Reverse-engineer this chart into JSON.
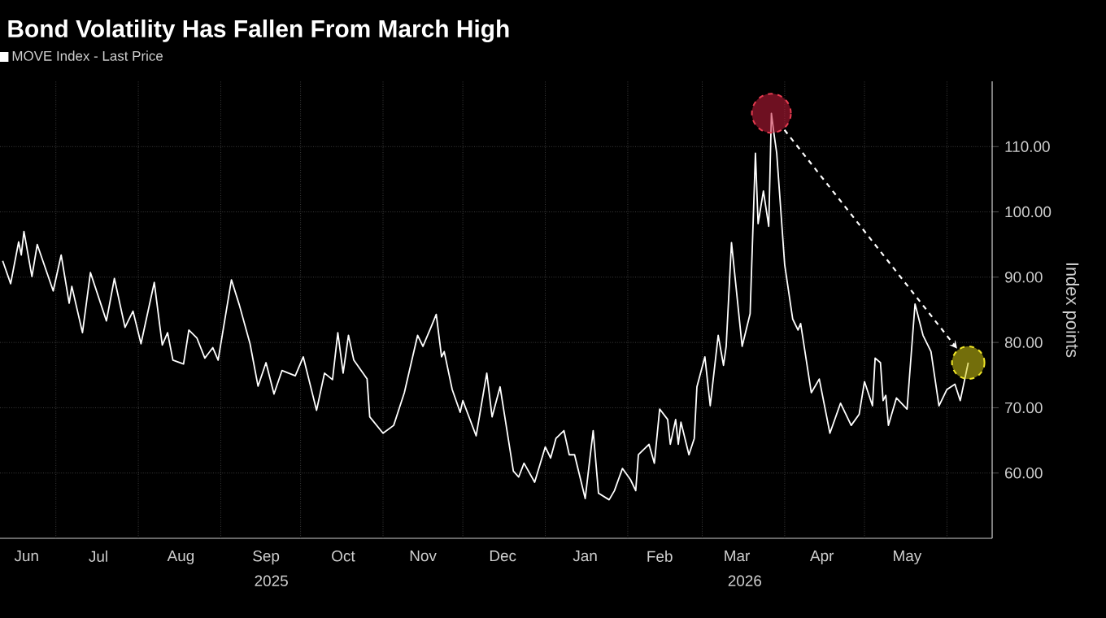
{
  "chart_data": {
    "type": "line",
    "title": "Bond Volatility Has Fallen From March High",
    "ylabel": "Index points",
    "legend": "top left",
    "grid": true,
    "marker": "none",
    "line_style": "solid",
    "xlim": [
      "2025-06-10",
      "2026-06-18"
    ],
    "ylim": [
      50,
      120
    ],
    "yticks": [
      {
        "value": 60,
        "label": "60.00"
      },
      {
        "value": 70,
        "label": "70.00"
      },
      {
        "value": 80,
        "label": "80.00"
      },
      {
        "value": 90,
        "label": "90.00"
      },
      {
        "value": 100,
        "label": "100.00"
      },
      {
        "value": 110,
        "label": "110.00"
      }
    ],
    "xticks": [
      {
        "value": "2025-06-20",
        "label": "Jun"
      },
      {
        "value": "2025-07-17",
        "label": "Jul"
      },
      {
        "value": "2025-08-17",
        "label": "Aug"
      },
      {
        "value": "2025-09-18",
        "label": "Sep"
      },
      {
        "value": "2025-10-17",
        "label": "Oct"
      },
      {
        "value": "2025-11-16",
        "label": "Nov"
      },
      {
        "value": "2025-12-16",
        "label": "Dec"
      },
      {
        "value": "2026-01-16",
        "label": "Jan"
      },
      {
        "value": "2026-02-13",
        "label": "Feb"
      },
      {
        "value": "2026-03-14",
        "label": "Mar"
      },
      {
        "value": "2026-04-15",
        "label": "Apr"
      },
      {
        "value": "2026-05-17",
        "label": "May"
      },
      {
        "value": "2025-07-01",
        "label": null
      },
      {
        "value": "2025-08-01",
        "label": null
      },
      {
        "value": "2025-09-01",
        "label": null
      },
      {
        "value": "2025-10-01",
        "label": null
      },
      {
        "value": "2025-11-01",
        "label": null
      },
      {
        "value": "2025-12-01",
        "label": null
      },
      {
        "value": "2026-01-01",
        "label": null
      },
      {
        "value": "2026-02-01",
        "label": null
      },
      {
        "value": "2026-03-01",
        "label": null
      },
      {
        "value": "2026-04-01",
        "label": null
      },
      {
        "value": "2026-05-01",
        "label": null
      },
      {
        "value": "2026-06-01",
        "label": null
      }
    ],
    "x2lim": [
      "2025-06-10",
      "2026-06-18"
    ],
    "x2ticks": [
      {
        "value": "2025-09-20",
        "label": "2025"
      },
      {
        "value": "2026-03-17",
        "label": "2026"
      },
      {
        "value": "2026-01-01",
        "label": null
      }
    ],
    "series": [
      {
        "name": "MOVE Index - Last Price",
        "color": "#ffffff",
        "x": [
          "2025-06-11",
          "2025-06-14",
          "2025-06-17",
          "2025-06-18",
          "2025-06-19",
          "2025-06-22",
          "2025-06-24",
          "2025-06-30",
          "2025-07-03",
          "2025-07-06",
          "2025-07-07",
          "2025-07-11",
          "2025-07-14",
          "2025-07-20",
          "2025-07-23",
          "2025-07-27",
          "2025-07-30",
          "2025-08-02",
          "2025-08-07",
          "2025-08-10",
          "2025-08-12",
          "2025-08-14",
          "2025-08-18",
          "2025-08-20",
          "2025-08-23",
          "2025-08-26",
          "2025-08-29",
          "2025-08-31",
          "2025-09-05",
          "2025-09-08",
          "2025-09-12",
          "2025-09-15",
          "2025-09-18",
          "2025-09-21",
          "2025-09-24",
          "2025-09-29",
          "2025-10-02",
          "2025-10-07",
          "2025-10-10",
          "2025-10-13",
          "2025-10-15",
          "2025-10-17",
          "2025-10-19",
          "2025-10-21",
          "2025-10-26",
          "2025-10-27",
          "2025-11-01",
          "2025-11-05",
          "2025-11-09",
          "2025-11-14",
          "2025-11-16",
          "2025-11-19",
          "2025-11-21",
          "2025-11-23",
          "2025-11-24",
          "2025-11-27",
          "2025-11-30",
          "2025-12-01",
          "2025-12-06",
          "2025-12-10",
          "2025-12-12",
          "2025-12-15",
          "2025-12-20",
          "2025-12-22",
          "2025-12-24",
          "2025-12-28",
          "2026-01-01",
          "2026-01-03",
          "2026-01-05",
          "2026-01-08",
          "2026-01-10",
          "2026-01-12",
          "2026-01-16",
          "2026-01-19",
          "2026-01-21",
          "2026-01-25",
          "2026-01-27",
          "2026-01-30",
          "2026-02-02",
          "2026-02-04",
          "2026-02-05",
          "2026-02-09",
          "2026-02-11",
          "2026-02-13",
          "2026-02-16",
          "2026-02-17",
          "2026-02-19",
          "2026-02-20",
          "2026-02-21",
          "2026-02-24",
          "2026-02-26",
          "2026-02-27",
          "2026-03-02",
          "2026-03-04",
          "2026-03-07",
          "2026-03-09",
          "2026-03-10",
          "2026-03-12",
          "2026-03-16",
          "2026-03-19",
          "2026-03-21",
          "2026-03-22",
          "2026-03-24",
          "2026-03-26",
          "2026-03-27",
          "2026-03-28",
          "2026-03-29",
          "2026-04-01",
          "2026-04-04",
          "2026-04-06",
          "2026-04-07",
          "2026-04-11",
          "2026-04-14",
          "2026-04-18",
          "2026-04-22",
          "2026-04-26",
          "2026-04-29",
          "2026-05-01",
          "2026-05-04",
          "2026-05-05",
          "2026-05-07",
          "2026-05-08",
          "2026-05-09",
          "2026-05-10",
          "2026-05-13",
          "2026-05-17",
          "2026-05-20",
          "2026-05-23",
          "2026-05-26",
          "2026-05-29",
          "2026-06-01",
          "2026-06-04",
          "2026-06-06",
          "2026-06-09"
        ],
        "values": [
          92.5,
          89,
          95.4,
          93.4,
          97,
          90.1,
          95,
          87.9,
          93.4,
          86,
          88.6,
          81.5,
          90.7,
          83.3,
          89.8,
          82.3,
          84.8,
          79.8,
          89.2,
          79.6,
          81.5,
          77.3,
          76.7,
          81.9,
          80.7,
          77.6,
          79.2,
          77.3,
          89.6,
          85.7,
          79.8,
          73.3,
          76.9,
          72.1,
          75.7,
          74.9,
          77.8,
          69.6,
          75.3,
          74.3,
          81.5,
          75.3,
          81.1,
          77.3,
          74.4,
          68.6,
          66.1,
          67.3,
          72.3,
          81.1,
          79.4,
          82.3,
          84.3,
          77.8,
          78.6,
          72.8,
          69.3,
          71.1,
          65.7,
          75.3,
          68.6,
          73.2,
          60.3,
          59.4,
          61.5,
          58.6,
          64,
          62.3,
          65.3,
          66.5,
          62.8,
          62.8,
          56.1,
          66.5,
          56.9,
          55.9,
          57.3,
          60.7,
          59,
          57.3,
          62.8,
          64.4,
          61.5,
          69.8,
          68.2,
          64.4,
          68.2,
          64.4,
          67.8,
          62.8,
          65.3,
          73.2,
          77.8,
          70.3,
          81.1,
          76.5,
          79.4,
          95.3,
          79.4,
          84.4,
          109,
          98.2,
          103.2,
          97.8,
          115.1,
          111.9,
          109,
          91.9,
          83.6,
          81.9,
          82.9,
          72.3,
          74.4,
          66.1,
          70.7,
          67.3,
          69,
          74,
          70.3,
          77.6,
          76.9,
          71.1,
          71.9,
          67.3,
          71.5,
          69.8,
          85.9,
          81.1,
          78.6,
          70.3,
          72.8,
          73.6,
          71.1,
          76.9
        ]
      }
    ]
  }
}
